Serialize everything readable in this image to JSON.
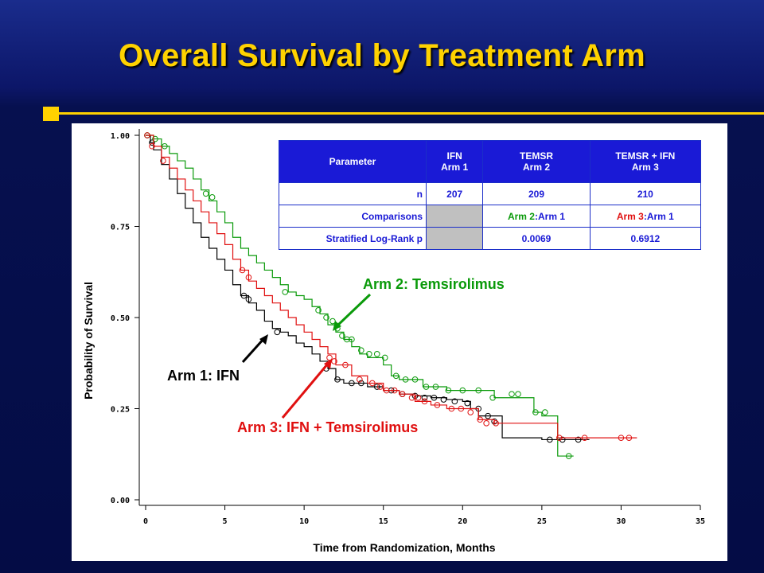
{
  "slide": {
    "title": "Overall Survival by Treatment Arm"
  },
  "colors": {
    "arm1": "#000000",
    "arm2": "#0a9a0a",
    "arm3": "#e01010",
    "title": "#ffd200",
    "table_header": "#1a1ad6"
  },
  "table": {
    "headers": [
      {
        "line1": "Parameter",
        "line2": ""
      },
      {
        "line1": "IFN",
        "line2": "Arm 1"
      },
      {
        "line1": "TEMSR",
        "line2": "Arm 2"
      },
      {
        "line1": "TEMSR + IFN",
        "line2": "Arm 3"
      }
    ],
    "n_row": {
      "label": "n",
      "values": [
        "207",
        "209",
        "210"
      ]
    },
    "comparisons_row": {
      "label": "Comparisons",
      "arm2": {
        "a": "Arm 2",
        "b": ":Arm 1"
      },
      "arm3": {
        "a": "Arm 3",
        "b": ":Arm 1"
      }
    },
    "logrank_row": {
      "label": "Stratified Log-Rank p",
      "values": [
        "0.0069",
        "0.6912"
      ]
    }
  },
  "callouts": {
    "arm1": "Arm 1: IFN",
    "arm2": "Arm 2: Temsirolimus",
    "arm3": "Arm 3: IFN + Temsirolimus"
  },
  "chart_data": {
    "type": "line",
    "xlabel": "Time from Randomization, Months",
    "ylabel": "Probability of Survival",
    "xlim": [
      0,
      35
    ],
    "ylim": [
      0,
      1
    ],
    "xticks": [
      "0",
      "5",
      "10",
      "15",
      "20",
      "25",
      "30",
      "35"
    ],
    "yticks": [
      "0.00",
      "0.25",
      "0.50",
      "0.75",
      "1.00"
    ],
    "grid": false,
    "series": [
      {
        "name": "Arm 1: IFN",
        "step": true,
        "points": [
          [
            0,
            1.0
          ],
          [
            0.3,
            0.98
          ],
          [
            0.5,
            0.96
          ],
          [
            1,
            0.92
          ],
          [
            1.5,
            0.88
          ],
          [
            2,
            0.84
          ],
          [
            2.5,
            0.8
          ],
          [
            3,
            0.76
          ],
          [
            3.5,
            0.72
          ],
          [
            4,
            0.69
          ],
          [
            4.5,
            0.66
          ],
          [
            5,
            0.63
          ],
          [
            5.5,
            0.59
          ],
          [
            6,
            0.56
          ],
          [
            6.5,
            0.54
          ],
          [
            7,
            0.52
          ],
          [
            7.5,
            0.49
          ],
          [
            8,
            0.47
          ],
          [
            8.5,
            0.46
          ],
          [
            9,
            0.45
          ],
          [
            9.5,
            0.43
          ],
          [
            10,
            0.42
          ],
          [
            10.5,
            0.4
          ],
          [
            11,
            0.38
          ],
          [
            11.5,
            0.36
          ],
          [
            12,
            0.33
          ],
          [
            12.5,
            0.32
          ],
          [
            13,
            0.32
          ],
          [
            14,
            0.31
          ],
          [
            15,
            0.3
          ],
          [
            16,
            0.29
          ],
          [
            17,
            0.285
          ],
          [
            18,
            0.28
          ],
          [
            19,
            0.275
          ],
          [
            20,
            0.27
          ],
          [
            20.5,
            0.25
          ],
          [
            21,
            0.23
          ],
          [
            22.5,
            0.21
          ],
          [
            22.5,
            0.17
          ],
          [
            25,
            0.165
          ],
          [
            28,
            0.165
          ]
        ],
        "censored": [
          [
            0.1,
            1.0
          ],
          [
            0.4,
            0.98
          ],
          [
            6.2,
            0.56
          ],
          [
            6.5,
            0.55
          ],
          [
            8.3,
            0.46
          ],
          [
            11.4,
            0.36
          ],
          [
            12.1,
            0.33
          ],
          [
            13.0,
            0.32
          ],
          [
            13.6,
            0.32
          ],
          [
            14.6,
            0.31
          ],
          [
            15.5,
            0.3
          ],
          [
            16.2,
            0.29
          ],
          [
            17.0,
            0.285
          ],
          [
            17.6,
            0.28
          ],
          [
            18.2,
            0.28
          ],
          [
            18.8,
            0.275
          ],
          [
            19.5,
            0.27
          ],
          [
            20.3,
            0.265
          ],
          [
            21.0,
            0.25
          ],
          [
            21.6,
            0.23
          ],
          [
            22.0,
            0.215
          ],
          [
            25.5,
            0.165
          ],
          [
            26.3,
            0.165
          ],
          [
            27.3,
            0.165
          ]
        ]
      },
      {
        "name": "Arm 2: Temsirolimus",
        "step": true,
        "points": [
          [
            0,
            1.0
          ],
          [
            0.5,
            0.99
          ],
          [
            1,
            0.97
          ],
          [
            1.5,
            0.95
          ],
          [
            2,
            0.93
          ],
          [
            2.5,
            0.91
          ],
          [
            3,
            0.88
          ],
          [
            3.5,
            0.85
          ],
          [
            4,
            0.82
          ],
          [
            4.5,
            0.79
          ],
          [
            5,
            0.76
          ],
          [
            5.5,
            0.72
          ],
          [
            6,
            0.69
          ],
          [
            6.5,
            0.67
          ],
          [
            7,
            0.65
          ],
          [
            7.5,
            0.63
          ],
          [
            8,
            0.61
          ],
          [
            8.5,
            0.59
          ],
          [
            9,
            0.57
          ],
          [
            9.5,
            0.56
          ],
          [
            10,
            0.55
          ],
          [
            10.5,
            0.53
          ],
          [
            11,
            0.51
          ],
          [
            11.5,
            0.48
          ],
          [
            12,
            0.46
          ],
          [
            12.5,
            0.44
          ],
          [
            13,
            0.42
          ],
          [
            13.5,
            0.4
          ],
          [
            14,
            0.39
          ],
          [
            15,
            0.37
          ],
          [
            15.5,
            0.34
          ],
          [
            16,
            0.33
          ],
          [
            17,
            0.33
          ],
          [
            17.5,
            0.31
          ],
          [
            18,
            0.31
          ],
          [
            19,
            0.3
          ],
          [
            20,
            0.3
          ],
          [
            21,
            0.3
          ],
          [
            22,
            0.28
          ],
          [
            23,
            0.28
          ],
          [
            24.5,
            0.24
          ],
          [
            25,
            0.23
          ],
          [
            26,
            0.17
          ],
          [
            26,
            0.12
          ],
          [
            27,
            0.12
          ]
        ],
        "censored": [
          [
            0.1,
            1.0
          ],
          [
            0.6,
            0.99
          ],
          [
            1.2,
            0.97
          ],
          [
            3.8,
            0.84
          ],
          [
            4.2,
            0.83
          ],
          [
            8.8,
            0.57
          ],
          [
            10.9,
            0.52
          ],
          [
            11.4,
            0.5
          ],
          [
            11.8,
            0.49
          ],
          [
            12.1,
            0.47
          ],
          [
            12.4,
            0.45
          ],
          [
            12.7,
            0.44
          ],
          [
            13.0,
            0.44
          ],
          [
            13.6,
            0.41
          ],
          [
            14.1,
            0.4
          ],
          [
            14.6,
            0.4
          ],
          [
            15.1,
            0.39
          ],
          [
            15.8,
            0.34
          ],
          [
            16.4,
            0.33
          ],
          [
            17.0,
            0.33
          ],
          [
            17.7,
            0.31
          ],
          [
            18.3,
            0.31
          ],
          [
            19.1,
            0.3
          ],
          [
            20.0,
            0.3
          ],
          [
            21.0,
            0.3
          ],
          [
            21.9,
            0.28
          ],
          [
            23.1,
            0.29
          ],
          [
            23.5,
            0.29
          ],
          [
            24.6,
            0.24
          ],
          [
            25.2,
            0.24
          ],
          [
            26.7,
            0.12
          ]
        ]
      },
      {
        "name": "Arm 3: IFN + Temsirolimus",
        "step": true,
        "points": [
          [
            0,
            1.0
          ],
          [
            0.5,
            0.97
          ],
          [
            1,
            0.94
          ],
          [
            1.5,
            0.91
          ],
          [
            2,
            0.88
          ],
          [
            2.5,
            0.85
          ],
          [
            3,
            0.82
          ],
          [
            3.5,
            0.79
          ],
          [
            4,
            0.76
          ],
          [
            4.5,
            0.73
          ],
          [
            5,
            0.7
          ],
          [
            5.5,
            0.66
          ],
          [
            6,
            0.63
          ],
          [
            6.5,
            0.6
          ],
          [
            7,
            0.58
          ],
          [
            7.5,
            0.56
          ],
          [
            8,
            0.54
          ],
          [
            8.5,
            0.52
          ],
          [
            9,
            0.5
          ],
          [
            9.5,
            0.48
          ],
          [
            10,
            0.46
          ],
          [
            10.5,
            0.44
          ],
          [
            11,
            0.42
          ],
          [
            11.5,
            0.4
          ],
          [
            12,
            0.37
          ],
          [
            13,
            0.34
          ],
          [
            14,
            0.32
          ],
          [
            15,
            0.3
          ],
          [
            16,
            0.29
          ],
          [
            17,
            0.27
          ],
          [
            18,
            0.26
          ],
          [
            19,
            0.25
          ],
          [
            20,
            0.25
          ],
          [
            21,
            0.22
          ],
          [
            22,
            0.21
          ],
          [
            23,
            0.21
          ],
          [
            25,
            0.21
          ],
          [
            26,
            0.17
          ],
          [
            31,
            0.17
          ]
        ],
        "censored": [
          [
            0.1,
            1.0
          ],
          [
            0.4,
            0.97
          ],
          [
            1.1,
            0.93
          ],
          [
            6.1,
            0.63
          ],
          [
            6.5,
            0.61
          ],
          [
            11.6,
            0.39
          ],
          [
            11.9,
            0.38
          ],
          [
            12.6,
            0.37
          ],
          [
            13.5,
            0.33
          ],
          [
            14.3,
            0.32
          ],
          [
            14.8,
            0.31
          ],
          [
            15.2,
            0.3
          ],
          [
            15.7,
            0.3
          ],
          [
            16.2,
            0.29
          ],
          [
            16.8,
            0.28
          ],
          [
            17.2,
            0.28
          ],
          [
            17.6,
            0.27
          ],
          [
            18.4,
            0.26
          ],
          [
            19.3,
            0.25
          ],
          [
            19.9,
            0.25
          ],
          [
            20.5,
            0.24
          ],
          [
            21.1,
            0.22
          ],
          [
            21.5,
            0.21
          ],
          [
            22.1,
            0.21
          ],
          [
            26.1,
            0.17
          ],
          [
            27.7,
            0.17
          ],
          [
            30.0,
            0.17
          ],
          [
            30.5,
            0.17
          ]
        ]
      }
    ]
  }
}
